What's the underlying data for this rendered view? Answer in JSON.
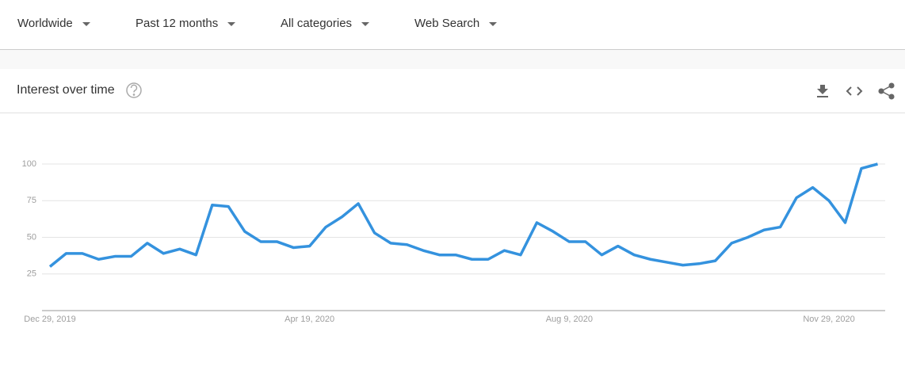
{
  "toolbar": {
    "filters": [
      "Worldwide",
      "Past 12 months",
      "All categories",
      "Web Search"
    ]
  },
  "card": {
    "title": "Interest over time"
  },
  "chart_data": {
    "type": "line",
    "categories": [
      "Dec 29, 2019",
      null,
      null,
      null,
      null,
      null,
      null,
      null,
      null,
      null,
      null,
      null,
      null,
      null,
      null,
      null,
      "Apr 19, 2020",
      null,
      null,
      null,
      null,
      null,
      null,
      null,
      null,
      null,
      null,
      null,
      null,
      null,
      null,
      null,
      "Aug 9, 2020",
      null,
      null,
      null,
      null,
      null,
      null,
      null,
      null,
      null,
      null,
      null,
      null,
      null,
      null,
      null,
      "Nov 29, 2020",
      null,
      null,
      null
    ],
    "values": [
      30,
      39,
      39,
      35,
      37,
      37,
      46,
      39,
      42,
      38,
      72,
      71,
      54,
      47,
      47,
      43,
      44,
      57,
      64,
      73,
      53,
      46,
      45,
      41,
      38,
      38,
      35,
      35,
      41,
      38,
      60,
      54,
      47,
      47,
      38,
      44,
      38,
      35,
      33,
      31,
      32,
      34,
      46,
      50,
      55,
      57,
      77,
      84,
      75,
      60,
      97,
      100
    ],
    "color": "#3492de",
    "ylim": [
      0,
      100
    ],
    "yticks": [
      25,
      50,
      75,
      100
    ],
    "grid": true
  }
}
